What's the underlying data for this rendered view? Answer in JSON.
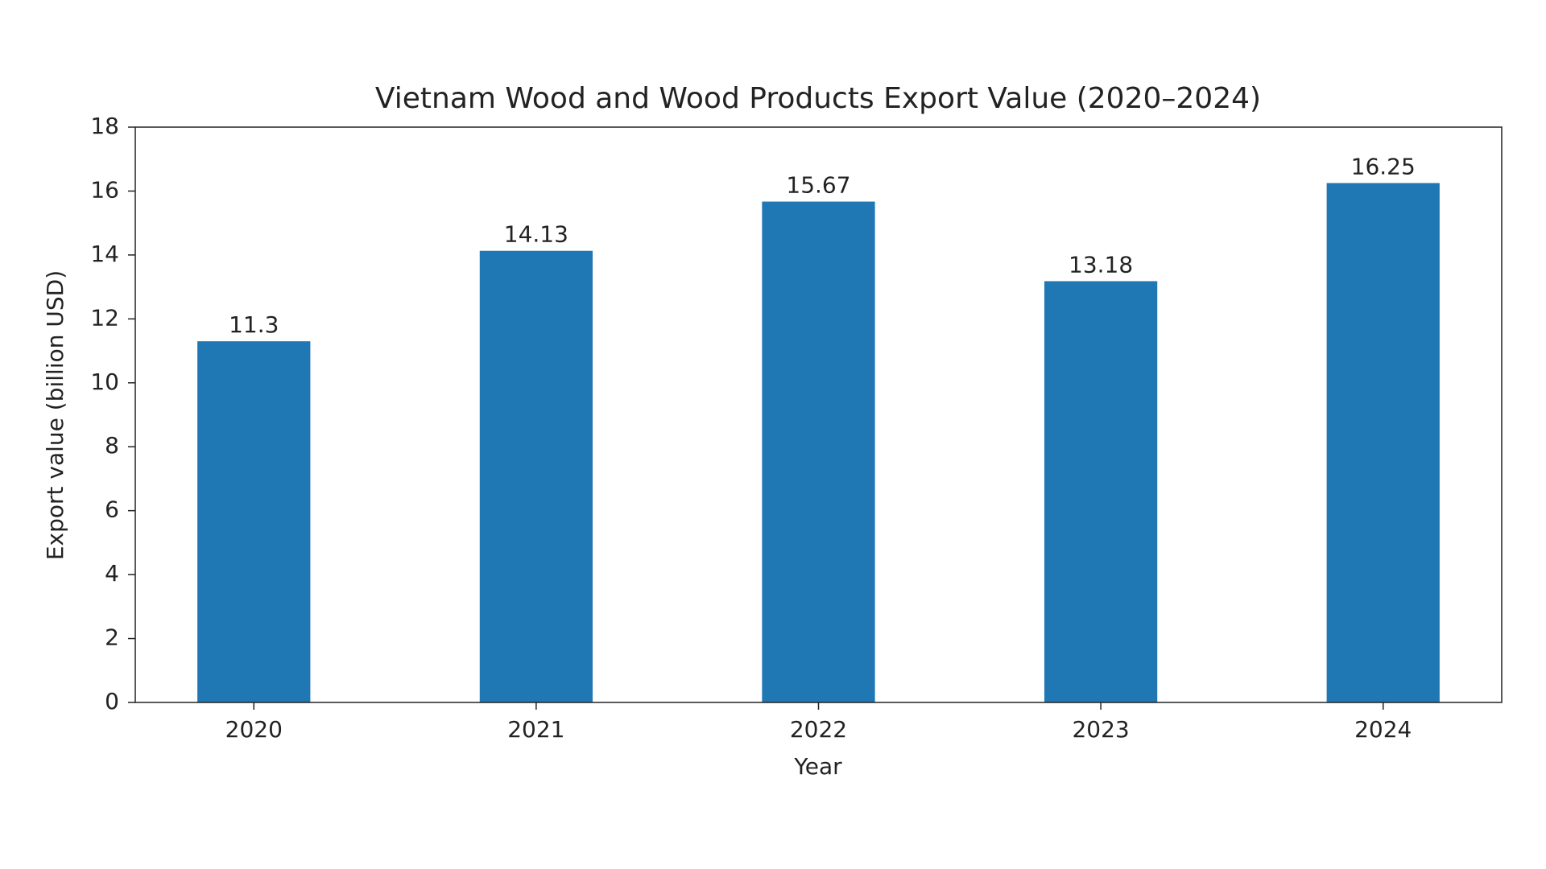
{
  "chart_data": {
    "type": "bar",
    "title": "Vietnam Wood and Wood Products Export Value (2020–2024)",
    "x_label": "Year",
    "y_label": "Export value (billion USD)",
    "categories": [
      "2020",
      "2021",
      "2022",
      "2023",
      "2024"
    ],
    "values": [
      11.3,
      14.13,
      15.67,
      13.18,
      16.25
    ],
    "color": "#1f77b4",
    "ylim": [
      0,
      18
    ],
    "yticks": [
      0,
      2,
      4,
      6,
      8,
      10,
      12,
      14,
      16,
      18
    ],
    "grid": false
  }
}
